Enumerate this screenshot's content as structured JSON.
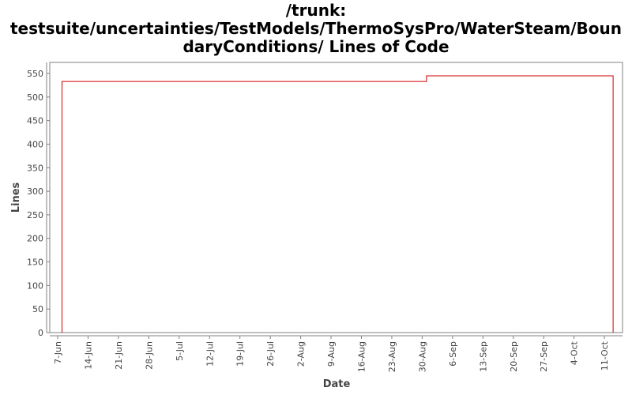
{
  "chart_data": {
    "type": "line",
    "title": "/trunk: testsuite/uncertainties/TestModels/ThermoSysPro/WaterSteam/BoundaryConditions/ Lines of Code",
    "title_lines": [
      "/trunk:",
      "testsuite/uncertainties/TestModels/ThermoSysPro/WaterSteam/Boun",
      "daryConditions/ Lines of Code"
    ],
    "xlabel": "Date",
    "ylabel": "Lines",
    "ylim": [
      0,
      570
    ],
    "yticks": [
      0,
      50,
      100,
      150,
      200,
      250,
      300,
      350,
      400,
      450,
      500,
      550
    ],
    "xticks": [
      "7-Jun",
      "14-Jun",
      "21-Jun",
      "28-Jun",
      "5-Jul",
      "12-Jul",
      "19-Jul",
      "26-Jul",
      "2-Aug",
      "9-Aug",
      "16-Aug",
      "23-Aug",
      "30-Aug",
      "6-Sep",
      "13-Sep",
      "20-Sep",
      "27-Sep",
      "4-Oct",
      "11-Oct"
    ],
    "grid": false,
    "legend": null,
    "series": [
      {
        "name": "Lines of Code",
        "color": "#cc0000",
        "step": true,
        "points": [
          {
            "x": "8-Jun",
            "y": 0
          },
          {
            "x": "8-Jun",
            "y": 533
          },
          {
            "x": "31-Aug",
            "y": 533
          },
          {
            "x": "31-Aug",
            "y": 545
          },
          {
            "x": "13-Oct",
            "y": 545
          },
          {
            "x": "13-Oct",
            "y": 0
          }
        ]
      }
    ]
  },
  "colors": {
    "line": "#cc0000",
    "axis": "#808080",
    "text": "#444444"
  }
}
